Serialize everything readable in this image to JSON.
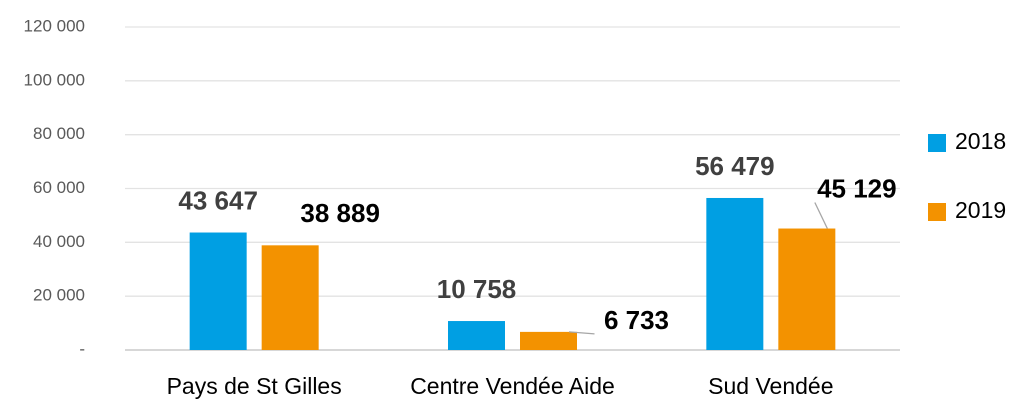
{
  "chart_data": {
    "type": "bar",
    "categories": [
      "Pays de St Gilles",
      "Centre Vendée Aide",
      "Sud Vendée"
    ],
    "series": [
      {
        "name": "2018",
        "color": "#009fe3",
        "values": [
          43647,
          10758,
          56479
        ],
        "value_labels": [
          "43 647",
          "10 758",
          "56 479"
        ]
      },
      {
        "name": "2019",
        "color": "#f39200",
        "values": [
          38889,
          6733,
          45129
        ],
        "value_labels": [
          "38 889",
          "6 733",
          "45 129"
        ]
      }
    ],
    "ylim": [
      0,
      120000
    ],
    "yticks": [
      {
        "value": 0,
        "label": "-"
      },
      {
        "value": 20000,
        "label": "20 000"
      },
      {
        "value": 40000,
        "label": "40 000"
      },
      {
        "value": 60000,
        "label": "60 000"
      },
      {
        "value": 80000,
        "label": "80 000"
      },
      {
        "value": 100000,
        "label": "100 000"
      },
      {
        "value": 120000,
        "label": "120 000"
      }
    ],
    "grid": true,
    "legend": "right"
  }
}
